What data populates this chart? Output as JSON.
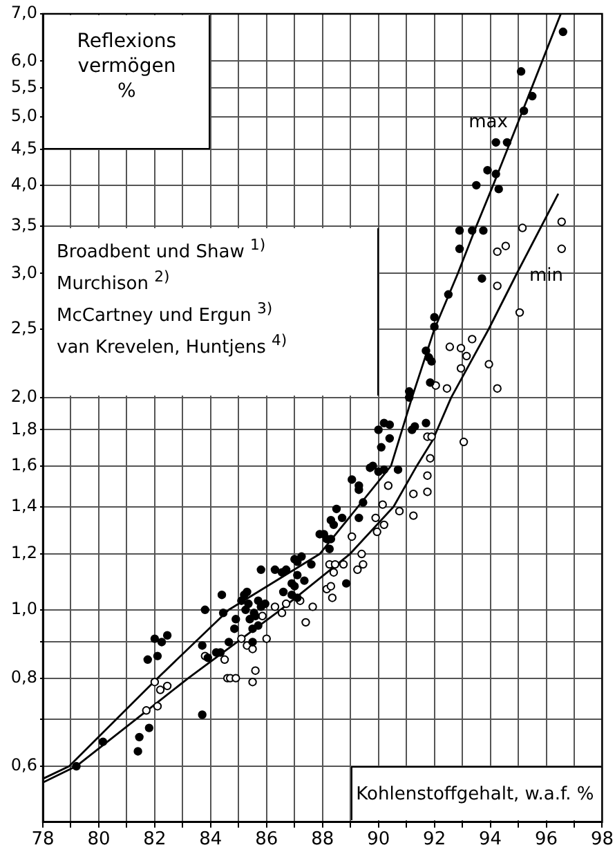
{
  "chart_data": {
    "type": "scatter",
    "ylabel": "Reflexions vermögen %",
    "xlabel": "Kohlenstoffgehalt, w.a.f. %",
    "annotations": [
      "Broadbent und Shaw $^{1)}$",
      "Murchison $^{2)}$",
      "McCartney und Ergun $^{3)}$",
      "van Krevelen, Huntjens $^{4)}$"
    ],
    "log": "y",
    "grid": true,
    "legend": false,
    "xlim": [
      78,
      98
    ],
    "xticks": [
      78,
      {
        "value": 79,
        "label": null
      },
      80,
      {
        "value": 81,
        "label": null
      },
      82,
      {
        "value": 83,
        "label": null
      },
      84,
      {
        "value": 85,
        "label": null
      },
      86,
      {
        "value": 87,
        "label": null
      },
      88,
      {
        "value": 89,
        "label": null
      },
      90,
      {
        "value": 91,
        "label": null
      },
      92,
      {
        "value": 93,
        "label": null
      },
      94,
      {
        "value": 95,
        "label": null
      },
      96,
      {
        "value": 97,
        "label": null
      },
      98
    ],
    "ylim": [
      0.5,
      7.0
    ],
    "yticks": [
      {
        "value": 0.6,
        "label": "0,6"
      },
      {
        "value": 0.7,
        "label": null
      },
      {
        "value": 0.8,
        "label": "0,8"
      },
      {
        "value": 0.9,
        "label": null
      },
      {
        "value": 1.0,
        "label": "1,0"
      },
      {
        "value": 1.2,
        "label": "1,2"
      },
      {
        "value": 1.4,
        "label": "1,4"
      },
      {
        "value": 1.6,
        "label": "1,6"
      },
      {
        "value": 1.8,
        "label": "1,8"
      },
      {
        "value": 2.0,
        "label": "2,0"
      },
      {
        "value": 2.5,
        "label": "2,5"
      },
      {
        "value": 3.0,
        "label": "3,0"
      },
      {
        "value": 3.5,
        "label": "3,5"
      },
      {
        "value": 4.0,
        "label": "4,0"
      },
      {
        "value": 4.5,
        "label": "4,5"
      },
      {
        "value": 5.0,
        "label": "5,0"
      },
      {
        "value": 5.5,
        "label": "5,5"
      },
      {
        "value": 6.0,
        "label": "6,0"
      },
      {
        "value": 7.0,
        "label": "7,0"
      }
    ],
    "series": [
      {
        "type": "scatter",
        "marker": "circle",
        "color": "#000000",
        "x": [
          79.2,
          80.15,
          81.4,
          81.45,
          81.8,
          82.1,
          81.75,
          82.0,
          82.25,
          82.45,
          83.7,
          83.7,
          83.8,
          83.9,
          84.2,
          84.35,
          84.4,
          84.45,
          84.65,
          84.85,
          84.9,
          85.2,
          85.3,
          85.1,
          85.35,
          85.25,
          85.55,
          85.6,
          85.4,
          85.7,
          85.8,
          85.95,
          85.7,
          85.5,
          85.5,
          85.8,
          86.3,
          86.55,
          86.7,
          87.1,
          87.0,
          87.25,
          87.6,
          87.1,
          86.9,
          87.0,
          87.35,
          86.6,
          86.9,
          87.1,
          87.9,
          88.05,
          88.85,
          88.3,
          88.15,
          88.25,
          88.5,
          88.3,
          88.4,
          88.7,
          89.3,
          89.05,
          89.3,
          89.3,
          89.45,
          89.7,
          89.8,
          90.0,
          90.2,
          90.7,
          90.1,
          90.4,
          90.0,
          90.2,
          90.4,
          91.2,
          91.3,
          91.7,
          91.1,
          91.1,
          91.85,
          91.9,
          91.8,
          91.7,
          92.0,
          92.0,
          92.5,
          93.7,
          92.9,
          92.9,
          93.35,
          93.75,
          93.5,
          94.3,
          94.2,
          93.9,
          94.2,
          94.6,
          95.2,
          95.5,
          95.1,
          96.6
        ],
        "values": [
          0.6,
          0.65,
          0.63,
          0.66,
          0.68,
          0.86,
          0.85,
          0.91,
          0.9,
          0.92,
          0.71,
          0.89,
          1.0,
          0.855,
          0.87,
          0.87,
          1.05,
          0.99,
          0.9,
          0.94,
          0.97,
          1.05,
          1.06,
          1.03,
          1.02,
          1.0,
          0.99,
          0.98,
          0.97,
          1.03,
          1.01,
          1.02,
          0.95,
          0.94,
          0.9,
          1.14,
          1.14,
          1.13,
          1.14,
          1.17,
          1.18,
          1.19,
          1.16,
          1.12,
          1.09,
          1.08,
          1.1,
          1.06,
          1.05,
          1.04,
          1.28,
          1.28,
          1.09,
          1.26,
          1.26,
          1.22,
          1.39,
          1.34,
          1.32,
          1.35,
          1.35,
          1.53,
          1.5,
          1.48,
          1.42,
          1.59,
          1.6,
          1.57,
          1.58,
          1.58,
          1.7,
          1.75,
          1.8,
          1.84,
          1.83,
          1.8,
          1.82,
          1.84,
          2.04,
          2.0,
          2.1,
          2.25,
          2.28,
          2.33,
          2.52,
          2.6,
          2.8,
          2.95,
          3.25,
          3.45,
          3.45,
          3.45,
          4.0,
          3.95,
          4.15,
          4.2,
          4.6,
          4.6,
          5.1,
          5.35,
          5.8,
          6.6
        ]
      },
      {
        "type": "scatter",
        "marker": "circle-open",
        "color": "#000000",
        "x": [
          81.7,
          82.1,
          82.0,
          82.2,
          82.45,
          83.8,
          84.5,
          84.6,
          84.7,
          84.9,
          85.5,
          85.6,
          85.1,
          85.3,
          85.5,
          85.85,
          86.0,
          86.3,
          86.55,
          86.7,
          87.4,
          87.2,
          87.65,
          88.15,
          88.3,
          88.35,
          88.25,
          88.45,
          88.75,
          88.4,
          89.25,
          89.45,
          89.4,
          89.05,
          89.95,
          89.9,
          90.2,
          90.15,
          90.35,
          90.75,
          91.25,
          91.25,
          91.75,
          91.75,
          91.85,
          91.75,
          91.9,
          93.05,
          92.05,
          92.45,
          92.95,
          92.55,
          92.95,
          93.15,
          93.35,
          94.25,
          93.95,
          95.05,
          94.25,
          94.25,
          94.55,
          95.15,
          96.55,
          96.55
        ],
        "values": [
          0.72,
          0.73,
          0.79,
          0.77,
          0.78,
          0.86,
          0.85,
          0.8,
          0.8,
          0.8,
          0.79,
          0.82,
          0.91,
          0.89,
          0.88,
          0.98,
          0.91,
          1.01,
          0.99,
          1.02,
          0.96,
          1.03,
          1.01,
          1.07,
          1.08,
          1.04,
          1.16,
          1.16,
          1.16,
          1.13,
          1.14,
          1.16,
          1.2,
          1.27,
          1.29,
          1.35,
          1.32,
          1.41,
          1.5,
          1.38,
          1.36,
          1.46,
          1.47,
          1.55,
          1.64,
          1.76,
          1.76,
          1.73,
          2.08,
          2.06,
          2.2,
          2.36,
          2.35,
          2.29,
          2.42,
          2.06,
          2.23,
          2.64,
          2.88,
          3.22,
          3.28,
          3.48,
          3.25,
          3.55
        ]
      },
      {
        "type": "line",
        "name": "max",
        "color": "#000000",
        "marker": "none",
        "line_style": "solid",
        "x": [
          78,
          78.94,
          82.1,
          84.65,
          87.9,
          90.45,
          91.2,
          92.0,
          92.84,
          93.5,
          94.1,
          95.07,
          96.52
        ],
        "values": [
          0.576,
          0.6,
          0.8,
          1.0,
          1.2,
          1.6,
          2.0,
          2.5,
          3.0,
          3.5,
          4.0,
          5.0,
          7.0
        ]
      },
      {
        "type": "line",
        "name": "min",
        "color": "#000000",
        "marker": "none",
        "line_style": "solid",
        "x": [
          78,
          79.19,
          83.2,
          86.5,
          88.98,
          90.54,
          91.37,
          91.94,
          92.6,
          93.94,
          94.95,
          96.43
        ],
        "values": [
          0.569,
          0.6,
          0.8,
          1.0,
          1.2,
          1.4,
          1.6,
          1.74,
          2.0,
          2.5,
          3.0,
          3.89
        ]
      }
    ]
  }
}
